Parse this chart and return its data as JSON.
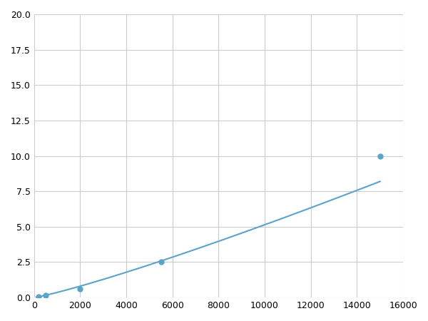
{
  "x_data": [
    200,
    500,
    2000,
    5500,
    15000
  ],
  "y_data": [
    0.07,
    0.15,
    0.6,
    2.5,
    10.0
  ],
  "line_color": "#5ba3c9",
  "marker_color": "#5ba3c9",
  "marker_size": 5,
  "xlim": [
    0,
    16000
  ],
  "ylim": [
    0,
    20.0
  ],
  "xticks": [
    0,
    2000,
    4000,
    6000,
    8000,
    10000,
    12000,
    14000,
    16000
  ],
  "yticks": [
    0.0,
    2.5,
    5.0,
    7.5,
    10.0,
    12.5,
    15.0,
    17.5,
    20.0
  ],
  "grid_color": "#cccccc",
  "background_color": "#ffffff",
  "figure_bg": "#ffffff"
}
